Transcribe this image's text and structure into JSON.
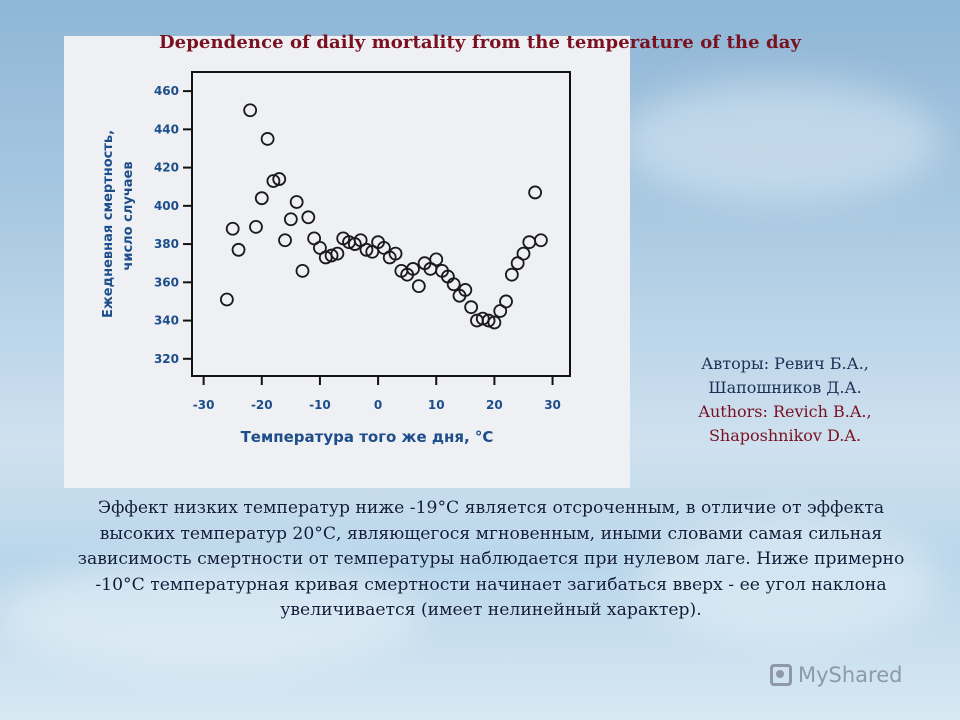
{
  "slide": {
    "title": "Dependence of daily mortality from the temperature of the day",
    "authors_ru_1": "Авторы: Ревич Б.А.,",
    "authors_ru_2": "Шапошников Д.А.",
    "authors_en_1": "Authors: Revich B.A.,",
    "authors_en_2": "Shaposhnikov D.A.",
    "paragraph": "Эффект низких температур ниже -19°С является отсроченным, в отличие от эффекта высоких температур 20°С, являющегося мгновенным, иными словами самая сильная зависимость смертности от температуры наблюдается при нулевом лаге. Ниже примерно -10°С температурная кривая смертности начинает загибаться вверх - ее угол наклона увеличивается (имеет нелинейный характер).",
    "watermark": "MyShared"
  },
  "colors": {
    "title": "#7a1020",
    "axis_text": "#1d4e8a",
    "points": "#1a1a1a"
  },
  "chart_data": {
    "type": "scatter",
    "xlabel": "Температура того же дня, °С",
    "ylabel_line1": "Ежедневная смертность,",
    "ylabel_line2": "число случаев",
    "xlim": [
      -32,
      33
    ],
    "ylim": [
      311,
      470
    ],
    "x_ticks": [
      -30,
      -20,
      -10,
      0,
      10,
      20,
      30
    ],
    "y_ticks": [
      320,
      340,
      360,
      380,
      400,
      420,
      440,
      460
    ],
    "grid": false,
    "points": [
      [
        -26,
        351
      ],
      [
        -25,
        388
      ],
      [
        -24,
        377
      ],
      [
        -22,
        450
      ],
      [
        -21,
        389
      ],
      [
        -20,
        404
      ],
      [
        -19,
        435
      ],
      [
        -18,
        413
      ],
      [
        -17,
        414
      ],
      [
        -16,
        382
      ],
      [
        -15,
        393
      ],
      [
        -14,
        402
      ],
      [
        -13,
        366
      ],
      [
        -12,
        394
      ],
      [
        -11,
        383
      ],
      [
        -10,
        378
      ],
      [
        -9,
        373
      ],
      [
        -8,
        374
      ],
      [
        -7,
        375
      ],
      [
        -6,
        383
      ],
      [
        -5,
        381
      ],
      [
        -4,
        380
      ],
      [
        -3,
        382
      ],
      [
        -2,
        377
      ],
      [
        -1,
        376
      ],
      [
        0,
        381
      ],
      [
        1,
        378
      ],
      [
        2,
        373
      ],
      [
        3,
        375
      ],
      [
        4,
        366
      ],
      [
        5,
        364
      ],
      [
        6,
        367
      ],
      [
        7,
        358
      ],
      [
        8,
        370
      ],
      [
        9,
        367
      ],
      [
        10,
        372
      ],
      [
        11,
        366
      ],
      [
        12,
        363
      ],
      [
        13,
        359
      ],
      [
        14,
        353
      ],
      [
        15,
        356
      ],
      [
        16,
        347
      ],
      [
        17,
        340
      ],
      [
        18,
        341
      ],
      [
        19,
        340
      ],
      [
        20,
        339
      ],
      [
        21,
        345
      ],
      [
        22,
        350
      ],
      [
        23,
        364
      ],
      [
        24,
        370
      ],
      [
        25,
        375
      ],
      [
        26,
        381
      ],
      [
        27,
        407
      ],
      [
        28,
        382
      ]
    ]
  }
}
